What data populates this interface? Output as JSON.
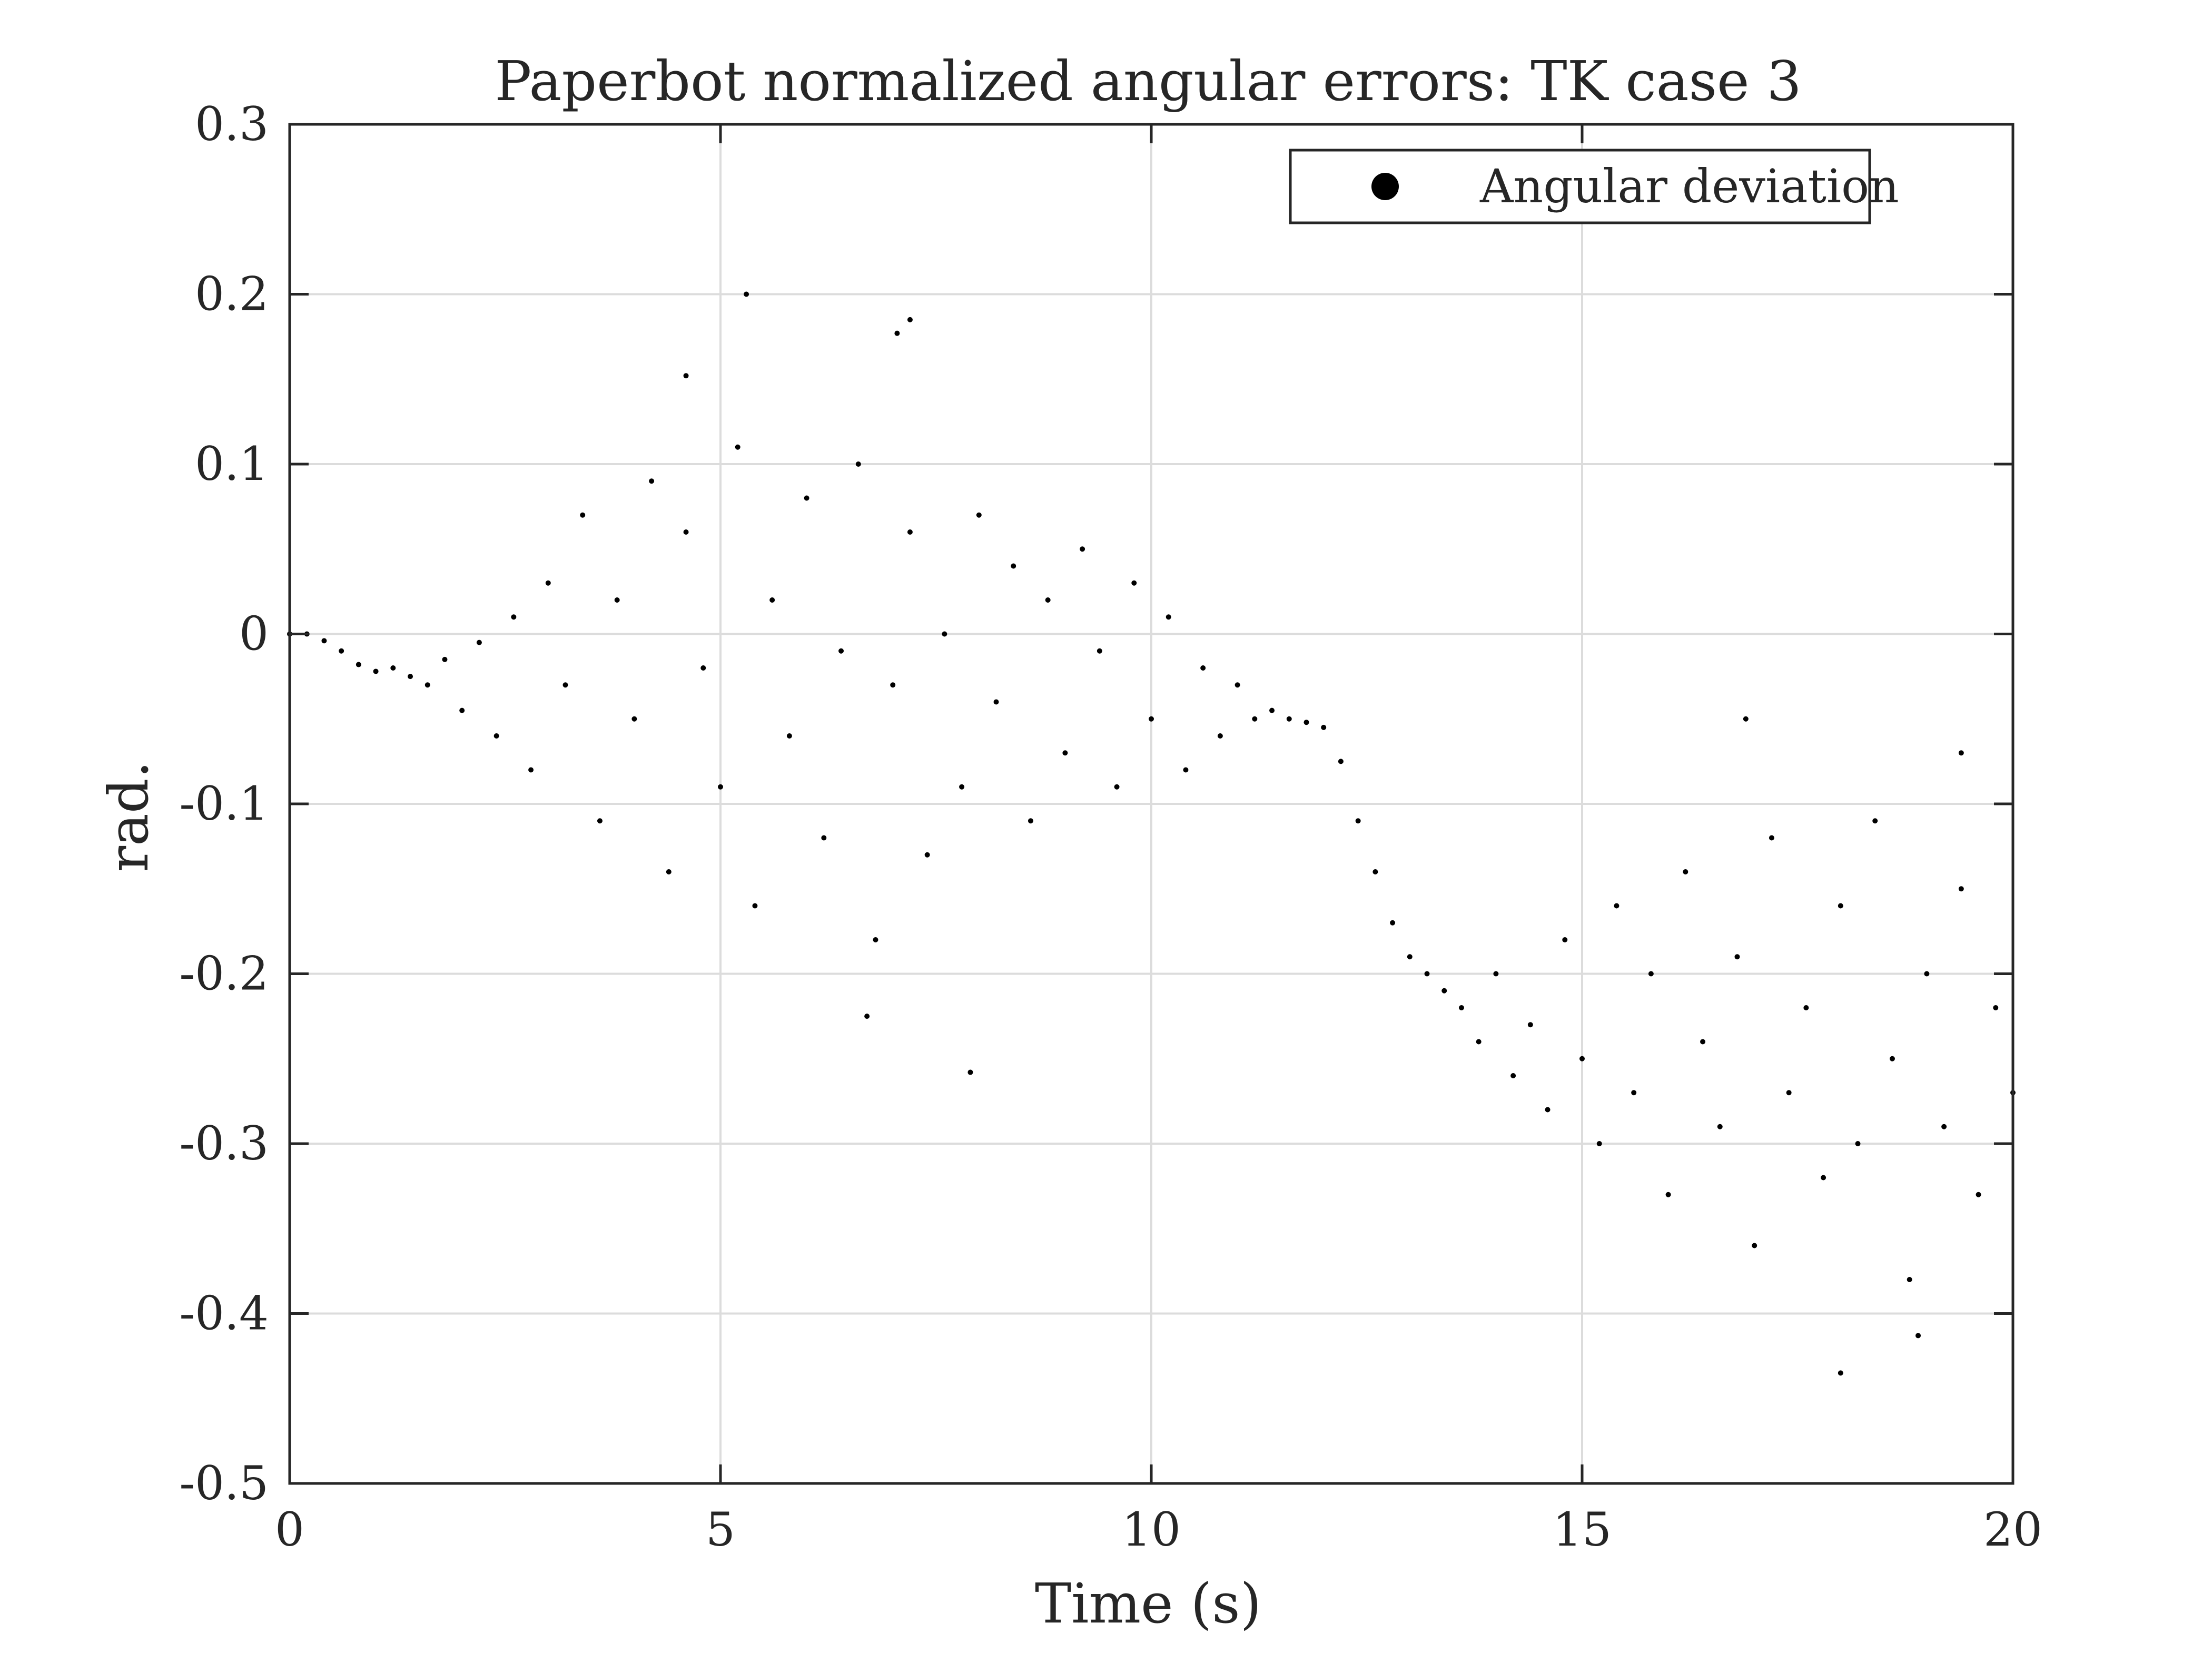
{
  "chart_data": {
    "type": "scatter",
    "title": "Paperbot normalized angular errors: TK case 3",
    "xlabel": "Time (s)",
    "ylabel": "rad.",
    "xlim": [
      0,
      20
    ],
    "ylim": [
      -0.5,
      0.3
    ],
    "x_ticks": [
      0,
      5,
      10,
      15,
      20
    ],
    "y_ticks": [
      0.3,
      0.2,
      0.1,
      0,
      -0.1,
      -0.2,
      -0.3,
      -0.4,
      -0.5
    ],
    "x_tick_labels": [
      "0",
      "5",
      "10",
      "15",
      "20"
    ],
    "y_tick_labels": [
      "0.3",
      "0.2",
      "0.1",
      "0",
      "-0.1",
      "-0.2",
      "-0.3",
      "-0.4",
      "-0.5"
    ],
    "grid": true,
    "legend_position": "top-right",
    "marker_color": "#000000",
    "series": [
      {
        "name": "Angular deviation",
        "marker": "dot",
        "points": [
          [
            0.0,
            0.0
          ],
          [
            0.2,
            0.0
          ],
          [
            0.4,
            -0.004
          ],
          [
            0.6,
            -0.01
          ],
          [
            0.8,
            -0.018
          ],
          [
            1.0,
            -0.022
          ],
          [
            1.2,
            -0.02
          ],
          [
            1.4,
            -0.025
          ],
          [
            1.6,
            -0.03
          ],
          [
            1.8,
            -0.015
          ],
          [
            2.0,
            -0.045
          ],
          [
            2.2,
            -0.005
          ],
          [
            2.4,
            -0.06
          ],
          [
            2.6,
            0.01
          ],
          [
            2.8,
            -0.08
          ],
          [
            3.0,
            0.03
          ],
          [
            3.2,
            -0.03
          ],
          [
            3.4,
            0.07
          ],
          [
            3.6,
            -0.11
          ],
          [
            3.8,
            0.02
          ],
          [
            4.0,
            -0.05
          ],
          [
            4.2,
            0.09
          ],
          [
            4.4,
            -0.14
          ],
          [
            4.6,
            0.06
          ],
          [
            4.8,
            -0.02
          ],
          [
            5.0,
            -0.09
          ],
          [
            5.2,
            0.11
          ],
          [
            5.4,
            -0.16
          ],
          [
            5.6,
            0.02
          ],
          [
            5.8,
            -0.06
          ],
          [
            6.0,
            0.08
          ],
          [
            6.2,
            -0.12
          ],
          [
            6.4,
            -0.01
          ],
          [
            6.6,
            0.1
          ],
          [
            6.8,
            -0.18
          ],
          [
            7.0,
            -0.03
          ],
          [
            7.2,
            0.06
          ],
          [
            7.4,
            -0.13
          ],
          [
            7.6,
            0.0
          ],
          [
            7.8,
            -0.09
          ],
          [
            8.0,
            0.07
          ],
          [
            8.2,
            -0.04
          ],
          [
            8.4,
            0.04
          ],
          [
            8.6,
            -0.11
          ],
          [
            8.8,
            0.02
          ],
          [
            9.0,
            -0.07
          ],
          [
            9.2,
            0.05
          ],
          [
            9.4,
            -0.01
          ],
          [
            9.6,
            -0.09
          ],
          [
            9.8,
            0.03
          ],
          [
            10.0,
            -0.05
          ],
          [
            10.2,
            0.01
          ],
          [
            10.4,
            -0.08
          ],
          [
            10.6,
            -0.02
          ],
          [
            10.8,
            -0.06
          ],
          [
            11.0,
            -0.03
          ],
          [
            11.2,
            -0.05
          ],
          [
            11.4,
            -0.045
          ],
          [
            11.6,
            -0.05
          ],
          [
            11.8,
            -0.052
          ],
          [
            12.0,
            -0.055
          ],
          [
            12.2,
            -0.075
          ],
          [
            12.4,
            -0.11
          ],
          [
            12.6,
            -0.14
          ],
          [
            12.8,
            -0.17
          ],
          [
            13.0,
            -0.19
          ],
          [
            13.2,
            -0.2
          ],
          [
            13.4,
            -0.21
          ],
          [
            13.6,
            -0.22
          ],
          [
            13.8,
            -0.24
          ],
          [
            14.0,
            -0.2
          ],
          [
            14.2,
            -0.26
          ],
          [
            14.4,
            -0.23
          ],
          [
            14.6,
            -0.28
          ],
          [
            14.8,
            -0.18
          ],
          [
            15.0,
            -0.25
          ],
          [
            15.2,
            -0.3
          ],
          [
            15.4,
            -0.16
          ],
          [
            15.6,
            -0.27
          ],
          [
            15.8,
            -0.2
          ],
          [
            16.0,
            -0.33
          ],
          [
            16.2,
            -0.14
          ],
          [
            16.4,
            -0.24
          ],
          [
            16.6,
            -0.29
          ],
          [
            16.8,
            -0.19
          ],
          [
            17.0,
            -0.36
          ],
          [
            17.2,
            -0.12
          ],
          [
            17.4,
            -0.27
          ],
          [
            17.6,
            -0.22
          ],
          [
            17.8,
            -0.32
          ],
          [
            18.0,
            -0.16
          ],
          [
            18.2,
            -0.3
          ],
          [
            18.4,
            -0.11
          ],
          [
            18.6,
            -0.25
          ],
          [
            18.8,
            -0.38
          ],
          [
            19.0,
            -0.2
          ],
          [
            19.2,
            -0.29
          ],
          [
            19.4,
            -0.15
          ],
          [
            19.6,
            -0.33
          ],
          [
            19.8,
            -0.22
          ],
          [
            20.0,
            -0.27
          ],
          [
            5.3,
            0.2
          ],
          [
            7.2,
            0.185
          ],
          [
            7.05,
            0.177
          ],
          [
            4.6,
            0.152
          ],
          [
            18.0,
            -0.435
          ],
          [
            18.9,
            -0.413
          ],
          [
            7.9,
            -0.258
          ],
          [
            6.7,
            -0.225
          ],
          [
            16.9,
            -0.05
          ],
          [
            19.4,
            -0.07
          ]
        ]
      }
    ]
  }
}
